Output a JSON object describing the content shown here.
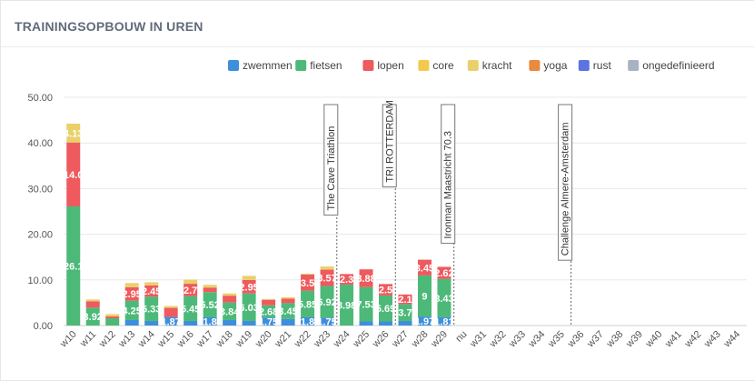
{
  "header": {
    "title": "TRAININGSOPBOUW IN UREN"
  },
  "chart_data": {
    "type": "bar",
    "stacked": true,
    "categories": [
      "w10",
      "w11",
      "w12",
      "w13",
      "w14",
      "w15",
      "w16",
      "w17",
      "w18",
      "w19",
      "w20",
      "w21",
      "w22",
      "w23",
      "w24",
      "w25",
      "w26",
      "w27",
      "w28",
      "w29",
      "nu",
      "w31",
      "w32",
      "w33",
      "w34",
      "w35",
      "w36",
      "w37",
      "w38",
      "w39",
      "w40",
      "w41",
      "w42",
      "w43",
      "w44"
    ],
    "ylim": [
      0,
      50
    ],
    "yticks": [
      "0.00",
      "10.00",
      "20.00",
      "30.00",
      "40.00",
      "50.00"
    ],
    "legend_position": "top",
    "grid": true,
    "series": [
      {
        "name": "zwemmen",
        "color": "#3d8fdc",
        "values": [
          0,
          0,
          0,
          1.2,
          1.0,
          1.87,
          1.0,
          1.8,
          1.2,
          1.0,
          1.75,
          1.45,
          1.8,
          1.75,
          0,
          0.9,
          0.9,
          1.0,
          1.97,
          1.81,
          0,
          0,
          0,
          0,
          0,
          0,
          0,
          0,
          0,
          0,
          0,
          0,
          0,
          0,
          0
        ],
        "labels": [
          "",
          "",
          "",
          "",
          "",
          "1.87",
          "",
          "1.8",
          "",
          "",
          "1.75",
          "",
          "1.8",
          "1.75",
          "",
          "",
          "",
          "",
          "1.97",
          "1.81",
          "",
          "",
          "",
          "",
          "",
          "",
          "",
          "",
          "",
          "",
          "",
          "",
          "",
          "",
          ""
        ]
      },
      {
        "name": "fietsen",
        "color": "#4db978",
        "values": [
          26.1,
          3.92,
          1.6,
          4.25,
          5.33,
          0,
          5.45,
          5.52,
          3.84,
          6.03,
          2.68,
          3.45,
          5.85,
          6.92,
          8.98,
          7.53,
          5.69,
          3.7,
          9,
          8.43,
          0,
          0,
          0,
          0,
          0,
          0,
          0,
          0,
          0,
          0,
          0,
          0,
          0,
          0,
          0
        ],
        "labels": [
          "26.1",
          "3.92",
          "",
          "4.25",
          "5.33",
          "",
          "5.45",
          "5.52",
          "3.84",
          "6.03",
          "2.68",
          "3.45",
          "5.85",
          "6.92",
          "8.98",
          "7.53",
          "5.69",
          "3.7",
          "9",
          "8.43",
          "",
          "",
          "",
          "",
          "",
          "",
          "",
          "",
          "",
          "",
          "",
          "",
          "",
          "",
          ""
        ]
      },
      {
        "name": "lopen",
        "color": "#ee5a5e",
        "values": [
          14.0,
          1.4,
          0.4,
          2.95,
          2.45,
          2.0,
          2.7,
          1.0,
          1.5,
          2.95,
          1.2,
          1.0,
          3.5,
          3.57,
          2.3,
          3.88,
          2.5,
          2.1,
          3.45,
          2.62,
          0,
          0,
          0,
          0,
          0,
          0,
          0,
          0,
          0,
          0,
          0,
          0,
          0,
          0,
          0
        ],
        "labels": [
          "14.0",
          "",
          "",
          "2.95",
          "2.45",
          "",
          "2.7",
          "",
          "",
          "2.95",
          "",
          "",
          "3.5",
          "3.57",
          "2.3",
          "3.88",
          "2.5",
          "2.1",
          "3.45",
          "2.62",
          "",
          "",
          "",
          "",
          "",
          "",
          "",
          "",
          "",
          "",
          "",
          "",
          "",
          "",
          ""
        ]
      },
      {
        "name": "core",
        "color": "#f2c94c",
        "values": [
          0,
          0,
          0,
          0,
          0,
          0,
          0,
          0,
          0,
          0,
          0,
          0,
          0,
          0,
          0,
          0,
          0,
          0,
          0,
          0,
          0,
          0,
          0,
          0,
          0,
          0,
          0,
          0,
          0,
          0,
          0,
          0,
          0,
          0,
          0
        ],
        "labels": []
      },
      {
        "name": "kracht",
        "color": "#ead06a",
        "values": [
          4.13,
          0.4,
          0.5,
          0.9,
          0.7,
          0.4,
          0.9,
          0.6,
          0.5,
          0.9,
          0.2,
          0.3,
          0.2,
          0.7,
          0,
          0,
          0,
          0,
          0,
          0,
          0,
          0,
          0,
          0,
          0,
          0,
          0,
          0,
          0,
          0,
          0,
          0,
          0,
          0,
          0
        ],
        "labels": [
          "4.13",
          "",
          "",
          "",
          "",
          "",
          "",
          "",
          "",
          "",
          "",
          "",
          "",
          "",
          "",
          "",
          "",
          "",
          "",
          "",
          "",
          "",
          "",
          "",
          "",
          "",
          "",
          "",
          "",
          "",
          "",
          "",
          "",
          "",
          ""
        ]
      },
      {
        "name": "yoga",
        "color": "#ea8a3c",
        "values": [
          0,
          0,
          0,
          0,
          0,
          0,
          0,
          0,
          0,
          0,
          0,
          0,
          0,
          0,
          0,
          0,
          0,
          0,
          0,
          0,
          0,
          0,
          0,
          0,
          0,
          0,
          0,
          0,
          0,
          0,
          0,
          0,
          0,
          0,
          0
        ],
        "labels": []
      },
      {
        "name": "rust",
        "color": "#5b74e0",
        "values": [
          0,
          0,
          0,
          0,
          0,
          0,
          0,
          0,
          0,
          0,
          0,
          0,
          0,
          0,
          0,
          0,
          0,
          0,
          0,
          0,
          0,
          0,
          0,
          0,
          0,
          0,
          0,
          0,
          0,
          0,
          0,
          0,
          0,
          0,
          0
        ],
        "labels": []
      },
      {
        "name": "ongedefinieerd",
        "color": "#a7b2c2",
        "values": [
          0,
          0,
          0,
          0,
          0,
          0,
          0,
          0,
          0,
          0,
          0,
          0,
          0,
          0,
          0,
          0,
          0,
          0,
          0,
          0,
          0,
          0,
          0,
          0,
          0,
          0,
          0,
          0,
          0,
          0,
          0,
          0,
          0,
          0,
          0
        ],
        "labels": []
      }
    ],
    "annotations": [
      {
        "label": "The Cave Triathlon",
        "at": "w24"
      },
      {
        "label": "TRI ROTTERDAM",
        "at": "w27"
      },
      {
        "label": "Ironman Maastricht 70.3",
        "at": "nu"
      },
      {
        "label": "Challenge Almere-Amsterdam",
        "at": "w36"
      }
    ]
  }
}
